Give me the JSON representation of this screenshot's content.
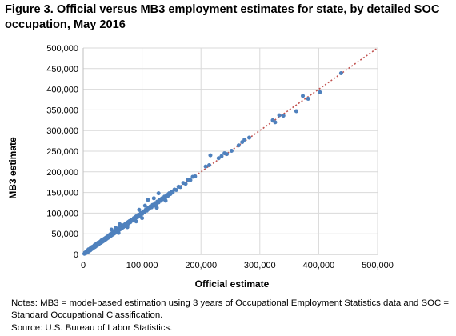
{
  "title": "Figure 3. Official versus MB3 employment estimates for state, by detailed SOC occupation, May 2016",
  "notes": "Notes: MB3 = model-based estimation using 3 years of Occupational Employment Statistics data and SOC = Standard Occupational Classification.",
  "source": "Source: U.S. Bureau of Labor Statistics.",
  "chart_data": {
    "type": "scatter",
    "title": "",
    "xlabel": "Official estimate",
    "ylabel": "MB3 estimate",
    "xlim": [
      0,
      500000
    ],
    "ylim": [
      0,
      500000
    ],
    "xticks": [
      "0",
      "100,000",
      "200,000",
      "300,000",
      "400,000",
      "500,000"
    ],
    "yticks": [
      "0",
      "50,000",
      "100,000",
      "150,000",
      "200,000",
      "250,000",
      "300,000",
      "350,000",
      "400,000",
      "450,000",
      "500,000"
    ],
    "grid": true,
    "legend": "none",
    "colors": {
      "points": "#4f81bd",
      "reference_line": "#c0504d",
      "grid": "#d9d9d9"
    },
    "reference_line": {
      "style": "dotted",
      "x": [
        0,
        500000
      ],
      "y": [
        0,
        500000
      ]
    },
    "points": [
      [
        2000,
        1500
      ],
      [
        3000,
        4000
      ],
      [
        4500,
        3000
      ],
      [
        5000,
        6500
      ],
      [
        6000,
        5000
      ],
      [
        7000,
        9000
      ],
      [
        8000,
        6000
      ],
      [
        9000,
        12000
      ],
      [
        10000,
        8000
      ],
      [
        11000,
        13000
      ],
      [
        12000,
        10000
      ],
      [
        13000,
        16000
      ],
      [
        14000,
        12500
      ],
      [
        15000,
        18000
      ],
      [
        16000,
        14000
      ],
      [
        17000,
        19000
      ],
      [
        18000,
        16500
      ],
      [
        19000,
        22000
      ],
      [
        20000,
        18000
      ],
      [
        21000,
        24000
      ],
      [
        22000,
        20500
      ],
      [
        23000,
        26000
      ],
      [
        24000,
        22000
      ],
      [
        25000,
        28000
      ],
      [
        26000,
        24000
      ],
      [
        27000,
        29000
      ],
      [
        28000,
        27000
      ],
      [
        29000,
        31000
      ],
      [
        30000,
        28000
      ],
      [
        31000,
        34000
      ],
      [
        32000,
        30000
      ],
      [
        33000,
        35000
      ],
      [
        34000,
        32000
      ],
      [
        35000,
        37000
      ],
      [
        36000,
        34500
      ],
      [
        37000,
        39000
      ],
      [
        38000,
        36000
      ],
      [
        39000,
        41000
      ],
      [
        40000,
        38000
      ],
      [
        41000,
        43000
      ],
      [
        42000,
        40000
      ],
      [
        43000,
        45000
      ],
      [
        44000,
        42000
      ],
      [
        45000,
        47500
      ],
      [
        46000,
        44000
      ],
      [
        47000,
        50000
      ],
      [
        48000,
        46000
      ],
      [
        49000,
        51000
      ],
      [
        50000,
        48000
      ],
      [
        51000,
        53000
      ],
      [
        52000,
        50000
      ],
      [
        53000,
        56000
      ],
      [
        54000,
        52000
      ],
      [
        55000,
        57000
      ],
      [
        56000,
        54000
      ],
      [
        57000,
        59000
      ],
      [
        58000,
        56500
      ],
      [
        59000,
        61000
      ],
      [
        60000,
        58000
      ],
      [
        61000,
        63000
      ],
      [
        62000,
        60000
      ],
      [
        63000,
        65000
      ],
      [
        64000,
        62000
      ],
      [
        65000,
        67000
      ],
      [
        66000,
        64000
      ],
      [
        67000,
        69000
      ],
      [
        68000,
        66000
      ],
      [
        69000,
        71000
      ],
      [
        70000,
        68000
      ],
      [
        71000,
        73000
      ],
      [
        72000,
        70000
      ],
      [
        73000,
        75000
      ],
      [
        74000,
        72000
      ],
      [
        75000,
        77000
      ],
      [
        76000,
        74000
      ],
      [
        77000,
        79000
      ],
      [
        78000,
        76500
      ],
      [
        79000,
        81000
      ],
      [
        80000,
        78000
      ],
      [
        82000,
        84000
      ],
      [
        84000,
        82000
      ],
      [
        86000,
        88000
      ],
      [
        88000,
        86000
      ],
      [
        90000,
        92000
      ],
      [
        92000,
        90000
      ],
      [
        94000,
        96000
      ],
      [
        96000,
        94000
      ],
      [
        98000,
        100000
      ],
      [
        100000,
        98000
      ],
      [
        102000,
        104000
      ],
      [
        104000,
        102000
      ],
      [
        106000,
        108000
      ],
      [
        108000,
        106000
      ],
      [
        110000,
        112000
      ],
      [
        112000,
        110000
      ],
      [
        114000,
        116000
      ],
      [
        116000,
        114000
      ],
      [
        118000,
        120000
      ],
      [
        120000,
        118000
      ],
      [
        122000,
        124000
      ],
      [
        124000,
        122000
      ],
      [
        126000,
        128000
      ],
      [
        128000,
        126000
      ],
      [
        130000,
        132000
      ],
      [
        132000,
        130000
      ],
      [
        134000,
        136000
      ],
      [
        136000,
        134000
      ],
      [
        138000,
        140000
      ],
      [
        140000,
        138000
      ],
      [
        142000,
        144000
      ],
      [
        144000,
        142000
      ],
      [
        146000,
        148000
      ],
      [
        148000,
        146000
      ],
      [
        150000,
        152000
      ],
      [
        152000,
        150000
      ],
      [
        155000,
        157000
      ],
      [
        158000,
        156000
      ],
      [
        162000,
        164000
      ],
      [
        165000,
        163000
      ],
      [
        170000,
        173000
      ],
      [
        174000,
        171000
      ],
      [
        178000,
        181000
      ],
      [
        182000,
        180000
      ],
      [
        186000,
        188000
      ],
      [
        190000,
        189000
      ],
      [
        48000,
        60000
      ],
      [
        55000,
        65000
      ],
      [
        62000,
        73000
      ],
      [
        95000,
        108000
      ],
      [
        105000,
        118000
      ],
      [
        110000,
        132000
      ],
      [
        120000,
        136000
      ],
      [
        128000,
        148000
      ],
      [
        60000,
        52000
      ],
      [
        75000,
        66000
      ],
      [
        90000,
        80000
      ],
      [
        100000,
        88000
      ],
      [
        125000,
        113000
      ],
      [
        140000,
        130000
      ],
      [
        208000,
        213000
      ],
      [
        214000,
        216000
      ],
      [
        216000,
        240000
      ],
      [
        230000,
        233000
      ],
      [
        235000,
        238000
      ],
      [
        240000,
        245000
      ],
      [
        244000,
        243000
      ],
      [
        252000,
        251000
      ],
      [
        264000,
        264000
      ],
      [
        270000,
        272000
      ],
      [
        274000,
        278000
      ],
      [
        282000,
        283000
      ],
      [
        322000,
        325000
      ],
      [
        326000,
        320000
      ],
      [
        333000,
        337000
      ],
      [
        340000,
        336000
      ],
      [
        362000,
        347000
      ],
      [
        373000,
        384000
      ],
      [
        382000,
        377000
      ],
      [
        402000,
        393000
      ],
      [
        438000,
        439000
      ]
    ]
  }
}
